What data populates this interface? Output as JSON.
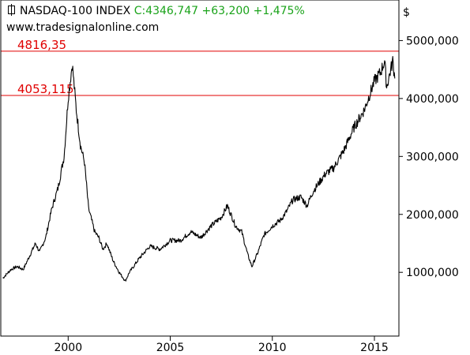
{
  "header": {
    "symbol_label": "NASDAQ-100 INDEX",
    "quote": "C:4346,747 +63,200 +1,475%",
    "source": "www.tradesignalonline.com"
  },
  "colors": {
    "line": "#000000",
    "reference": "#e00000",
    "change": "#1aa31a",
    "frame": "#000000"
  },
  "chart_data": {
    "type": "line",
    "title": "NASDAQ-100 INDEX",
    "ylabel": "$",
    "xlim": [
      1996.7,
      2016.2
    ],
    "ylim": [
      -100000,
      5700000
    ],
    "x_ticks": [
      2000,
      2005,
      2010,
      2015
    ],
    "x_tick_labels": [
      "2000",
      "2005",
      "2010",
      "2015"
    ],
    "y_ticks": [
      1000000,
      2000000,
      3000000,
      4000000,
      5000000
    ],
    "y_tick_labels": [
      "1000,000",
      "2000,000",
      "3000,000",
      "4000,000",
      "5000,000"
    ],
    "y_unit_label": "$",
    "reference_lines": [
      {
        "value": 4816.35,
        "label": "4816,35"
      },
      {
        "value": 4053.115,
        "label": "4053,115"
      }
    ],
    "series": [
      {
        "x": [
          1996.8,
          1997.2,
          1997.5,
          1997.8,
          1998.0,
          1998.4,
          1998.6,
          1998.9,
          1999.2,
          1999.5,
          1999.8,
          2000.0,
          2000.2,
          2000.4,
          2000.6,
          2000.8,
          2001.0,
          2001.3,
          2001.5,
          2001.7,
          2001.9,
          2002.2,
          2002.5,
          2002.8,
          2003.0,
          2003.5,
          2004.0,
          2004.5,
          2005.0,
          2005.5,
          2006.0,
          2006.5,
          2007.0,
          2007.5,
          2007.8,
          2008.2,
          2008.5,
          2008.8,
          2009.0,
          2009.3,
          2009.6,
          2010.0,
          2010.4,
          2010.7,
          2011.0,
          2011.4,
          2011.7,
          2012.0,
          2012.3,
          2012.6,
          2013.0,
          2013.5,
          2014.0,
          2014.5,
          2015.0,
          2015.3,
          2015.5,
          2015.6,
          2015.8,
          2015.9,
          2016.0
        ],
        "y": [
          900000,
          1050000,
          1100000,
          1050000,
          1200000,
          1500000,
          1350000,
          1600000,
          2100000,
          2450000,
          3000000,
          4000000,
          4600000,
          3800000,
          3200000,
          2900000,
          2100000,
          1700000,
          1600000,
          1400000,
          1500000,
          1200000,
          1000000,
          850000,
          1000000,
          1250000,
          1450000,
          1400000,
          1550000,
          1550000,
          1700000,
          1600000,
          1800000,
          1950000,
          2150000,
          1800000,
          1700000,
          1300000,
          1100000,
          1350000,
          1650000,
          1800000,
          1900000,
          2050000,
          2250000,
          2300000,
          2150000,
          2400000,
          2550000,
          2700000,
          2800000,
          3100000,
          3500000,
          3800000,
          4300000,
          4450000,
          4650000,
          4200000,
          4500000,
          4650000,
          4346747
        ]
      }
    ]
  }
}
